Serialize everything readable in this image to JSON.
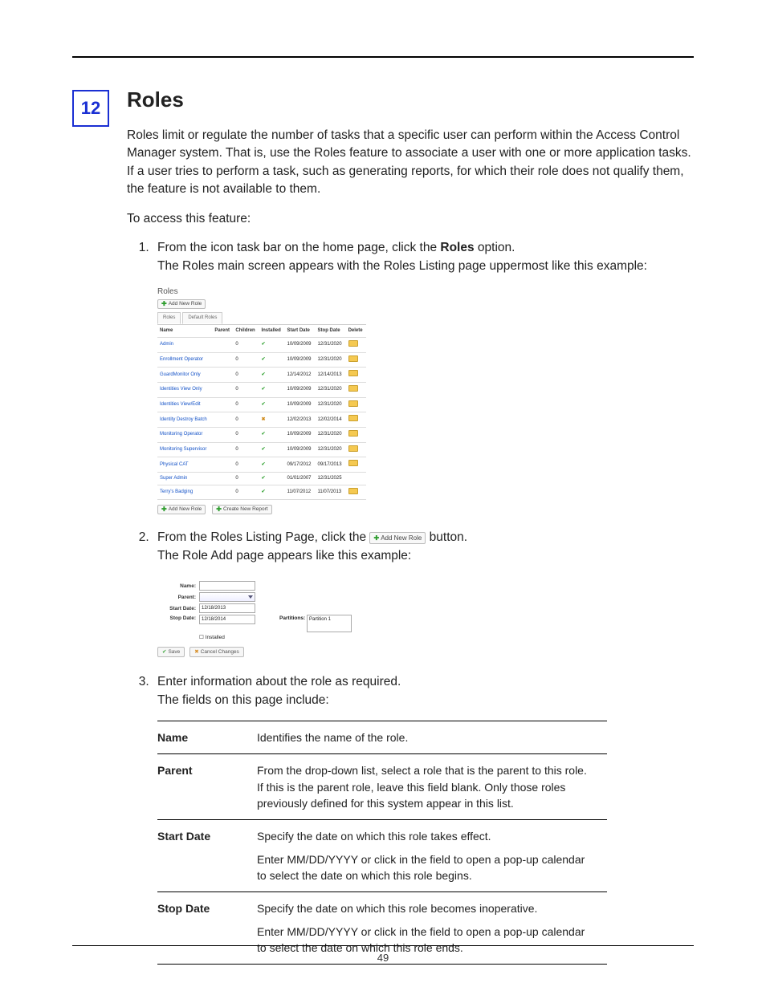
{
  "chapter_number": "12",
  "heading": "Roles",
  "intro": "Roles limit or regulate the number of tasks that a specific user can perform within the Access Control Manager system. That is, use the Roles feature to associate a user with one or more application tasks. If a user tries to perform a task, such as generating reports, for which their role does not qualify them, the feature is not available to them.",
  "access_lead": "To access this feature:",
  "steps": {
    "s1": "From the icon task bar on the home page, click the ",
    "s1_bold": "Roles",
    "s1_after": " option.",
    "s1_result": "The Roles main screen appears with the Roles Listing page uppermost like this example:",
    "s2_before": "From the Roles Listing Page, click the ",
    "s2_after": " button.",
    "s2_result": "The Role Add page appears like this example:",
    "s3": "Enter information about the role as required.",
    "s3_result": "The fields on this page include:"
  },
  "listing": {
    "title": "Roles",
    "add_btn": "Add New Role",
    "tabs": [
      "Roles",
      "Default Roles"
    ],
    "columns": [
      "Name",
      "Parent",
      "Children",
      "Installed",
      "Start Date",
      "Stop Date",
      "Delete"
    ],
    "rows": [
      {
        "name": "Admin",
        "children": "0",
        "installed": true,
        "start": "10/09/2009",
        "stop": "12/31/2020",
        "del": true
      },
      {
        "name": "Enrollment Operator",
        "children": "0",
        "installed": true,
        "start": "10/09/2009",
        "stop": "12/31/2020",
        "del": true
      },
      {
        "name": "GuardMonitor Only",
        "children": "0",
        "installed": true,
        "start": "12/14/2012",
        "stop": "12/14/2013",
        "del": true
      },
      {
        "name": "Identities View Only",
        "children": "0",
        "installed": true,
        "start": "10/09/2009",
        "stop": "12/31/2020",
        "del": true
      },
      {
        "name": "Identities View/Edit",
        "children": "0",
        "installed": true,
        "start": "10/09/2009",
        "stop": "12/31/2020",
        "del": true
      },
      {
        "name": "Identity Destroy Batch",
        "children": "0",
        "installed": false,
        "start": "12/02/2013",
        "stop": "12/02/2014",
        "del": true
      },
      {
        "name": "Monitoring Operator",
        "children": "0",
        "installed": true,
        "start": "10/09/2009",
        "stop": "12/31/2020",
        "del": true
      },
      {
        "name": "Monitoring Supervisor",
        "children": "0",
        "installed": true,
        "start": "10/09/2009",
        "stop": "12/31/2020",
        "del": true
      },
      {
        "name": "Physical CAT",
        "children": "0",
        "installed": true,
        "start": "09/17/2012",
        "stop": "09/17/2013",
        "del": true
      },
      {
        "name": "Super Admin",
        "children": "0",
        "installed": true,
        "start": "01/01/2007",
        "stop": "12/31/2025",
        "del": false
      },
      {
        "name": "Terry's Badging",
        "children": "0",
        "installed": true,
        "start": "11/07/2012",
        "stop": "11/07/2013",
        "del": true
      }
    ],
    "create_report": "Create New Report"
  },
  "inline_add_btn": "Add New Role",
  "form": {
    "name_label": "Name:",
    "parent_label": "Parent:",
    "start_label": "Start Date:",
    "start_value": "12/18/2013",
    "stop_label": "Stop Date:",
    "stop_value": "12/18/2014",
    "installed_label": "Installed",
    "partitions_label": "Partitions:",
    "partition_value": "Partition 1",
    "save": "Save",
    "cancel": "Cancel Changes"
  },
  "fields_table": [
    {
      "name": "Name",
      "desc": [
        "Identifies the name of the role."
      ]
    },
    {
      "name": "Parent",
      "desc": [
        "From the drop-down list, select a role that is the parent to this role. If this is the parent role, leave this field blank. Only those roles previously defined for this system appear in this list."
      ]
    },
    {
      "name": "Start Date",
      "desc": [
        "Specify the date on which this role takes effect.",
        "Enter MM/DD/YYYY or click in the field to open a pop-up calendar to select the date on which this role begins."
      ]
    },
    {
      "name": "Stop Date",
      "desc": [
        "Specify the date on which this role becomes inoperative.",
        "Enter MM/DD/YYYY or click in the field to open a pop-up calendar to select the date on which this role ends."
      ]
    }
  ],
  "page_number": "49"
}
